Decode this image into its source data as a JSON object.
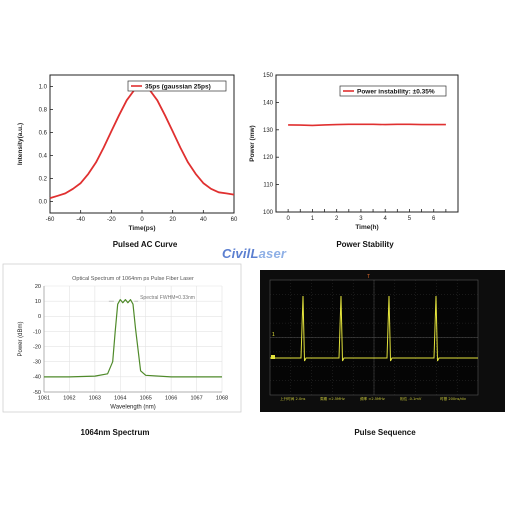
{
  "logo": {
    "part1": "CivilL",
    "part2": "aser"
  },
  "captions": {
    "ac": "Pulsed AC Curve",
    "stability": "Power Stability",
    "spectrum": "1064nm Spectrum",
    "sequence": "Pulse Sequence"
  },
  "colors": {
    "red": "#e03030",
    "green": "#4f8a2a",
    "scope_bg": "#0d0d0d",
    "scope_trace": "#e3e33c"
  },
  "chart_data": [
    {
      "id": "ac",
      "type": "line",
      "title": "",
      "xlabel": "Time(ps)",
      "ylabel": "Intensity(a.u.)",
      "xlim": [
        -60,
        60
      ],
      "ylim": [
        -0.1,
        1.1
      ],
      "xticks": [
        -60,
        -40,
        -20,
        0,
        20,
        40,
        60
      ],
      "yticks": [
        0.0,
        0.2,
        0.4,
        0.6,
        0.8,
        1.0
      ],
      "xticklabels": [
        "-60",
        "-40",
        "-20",
        "0",
        "20",
        "40",
        "60"
      ],
      "yticklabels": [
        "0.0",
        "0.2",
        "0.4",
        "0.6",
        "0.8",
        "1.0"
      ],
      "legend": "35ps (gaussian 25ps)",
      "series": [
        {
          "name": "35ps (gaussian 25ps)",
          "x": [
            -60,
            -55,
            -50,
            -45,
            -40,
            -35,
            -30,
            -25,
            -20,
            -15,
            -10,
            -5,
            0,
            5,
            10,
            15,
            20,
            25,
            30,
            35,
            40,
            45,
            50,
            55,
            60
          ],
          "y": [
            0.03,
            0.05,
            0.07,
            0.11,
            0.16,
            0.24,
            0.34,
            0.47,
            0.61,
            0.75,
            0.88,
            0.97,
            1.0,
            0.97,
            0.88,
            0.75,
            0.61,
            0.47,
            0.34,
            0.24,
            0.16,
            0.11,
            0.08,
            0.07,
            0.06
          ]
        }
      ]
    },
    {
      "id": "stability",
      "type": "line",
      "title": "",
      "xlabel": "Time(h)",
      "ylabel": "Power (mw)",
      "xlim": [
        -0.5,
        7
      ],
      "ylim": [
        100,
        150
      ],
      "xticks": [
        0,
        0.5,
        1,
        1.5,
        2,
        2.5,
        3,
        3.5,
        4,
        4.5,
        5,
        5.5,
        6,
        6.5
      ],
      "yticks": [
        100,
        110,
        120,
        130,
        140,
        150
      ],
      "xticklabels": [
        "0",
        "",
        "1",
        "",
        "2",
        "",
        "3",
        "",
        "4",
        "",
        "5",
        "",
        "6",
        ""
      ],
      "yticklabels": [
        "100",
        "110",
        "120",
        "130",
        "140",
        "150"
      ],
      "legend": "Power instability: ±0.35%",
      "series": [
        {
          "name": "Power instability: ±0.35%",
          "x": [
            0,
            0.5,
            1,
            1.5,
            2,
            2.5,
            3,
            3.5,
            4,
            4.5,
            5,
            5.5,
            6,
            6.5
          ],
          "y": [
            131.8,
            131.7,
            131.6,
            131.8,
            131.9,
            132.0,
            132.0,
            132.0,
            131.9,
            132.0,
            132.0,
            131.9,
            131.9,
            131.9
          ]
        }
      ]
    },
    {
      "id": "spectrum",
      "type": "line",
      "title": "Optical Spectrum of 1064nm ps Pulse Fiber Laser",
      "xlabel": "Wavelength (nm)",
      "ylabel": "Power (dBm)",
      "xlim": [
        1061,
        1068
      ],
      "ylim": [
        -50,
        20
      ],
      "xticks": [
        1061,
        1062,
        1063,
        1064,
        1065,
        1066,
        1067,
        1068
      ],
      "yticks": [
        -50,
        -40,
        -30,
        -20,
        -10,
        0,
        10,
        20
      ],
      "xticklabels": [
        "1061",
        "1062",
        "1063",
        "1064",
        "1065",
        "1066",
        "1067",
        "1068"
      ],
      "yticklabels": [
        "-50",
        "-40",
        "-30",
        "-20",
        "-10",
        "0",
        "10",
        "20"
      ],
      "annotation": "Spectral FWHM=0.33nm",
      "series": [
        {
          "name": "",
          "x": [
            1061,
            1062,
            1063,
            1063.5,
            1063.7,
            1063.8,
            1063.9,
            1064.0,
            1064.1,
            1064.2,
            1064.3,
            1064.4,
            1064.5,
            1064.6,
            1064.8,
            1065,
            1066,
            1067,
            1068
          ],
          "y": [
            -40,
            -40,
            -39.5,
            -38,
            -30,
            -10,
            8,
            11,
            9,
            11,
            9,
            11,
            8,
            -8,
            -36,
            -39,
            -40,
            -40,
            -40
          ]
        }
      ]
    }
  ],
  "scope": {
    "markers": [
      "1",
      "T"
    ],
    "status": [
      "上升时间  2.0ns",
      "周期  ≈2.5MHz",
      "频率  ≈2.5MHz",
      "相位  -0.1mV",
      "时基 200ns/div"
    ]
  }
}
